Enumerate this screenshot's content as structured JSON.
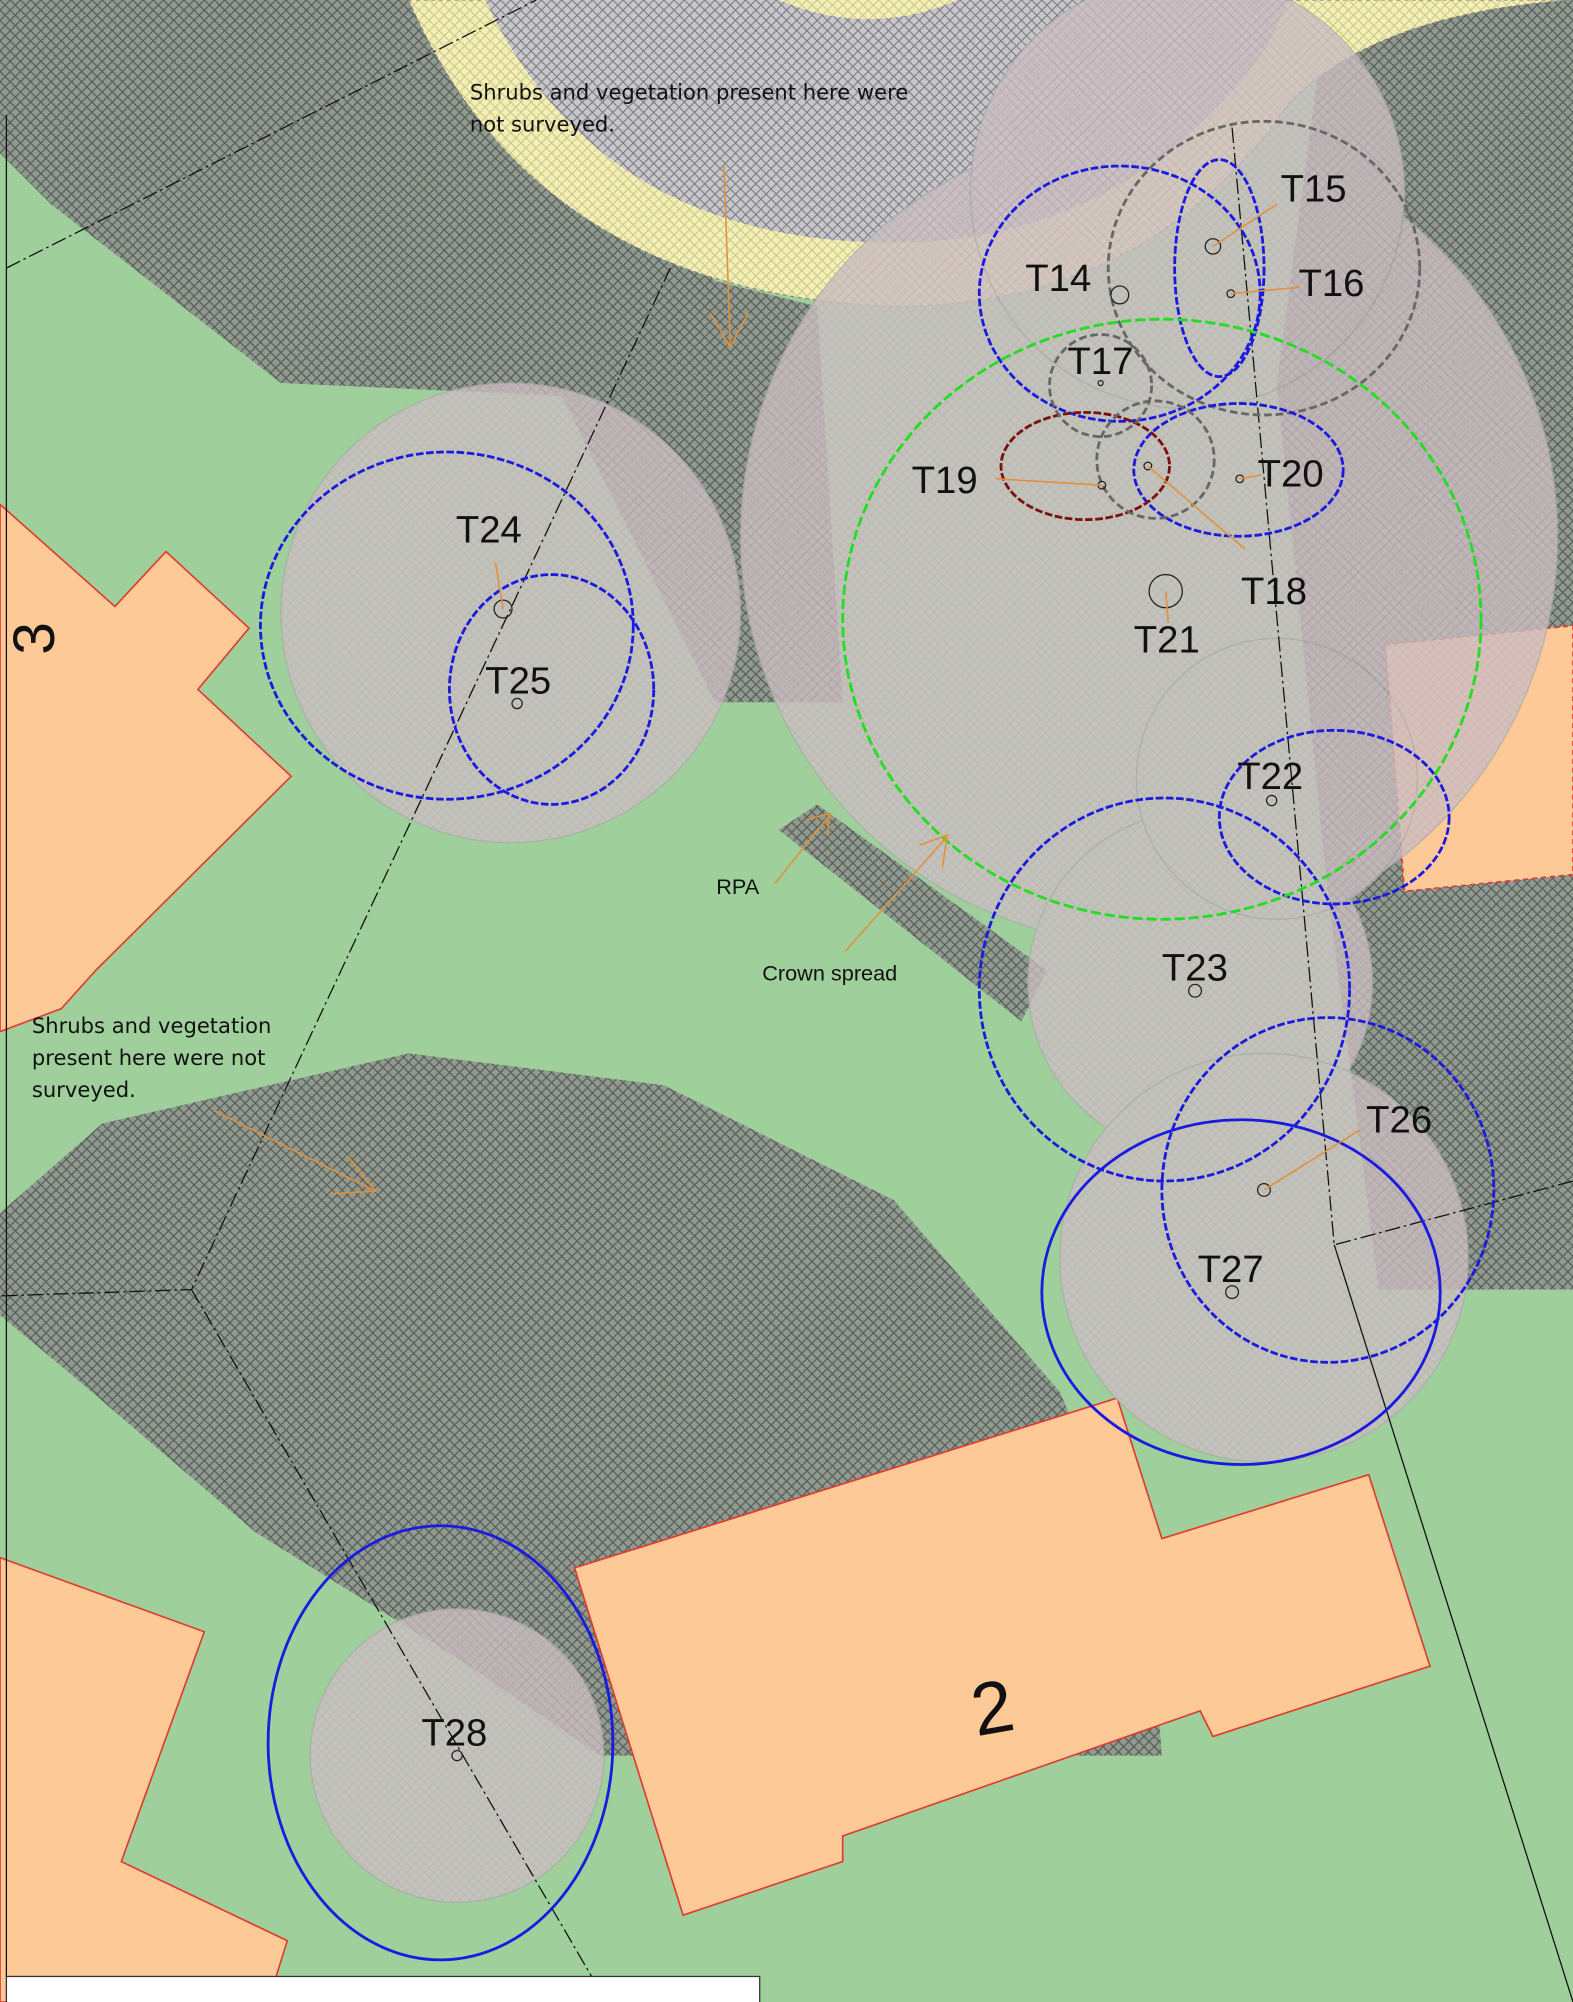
{
  "map": {
    "trees": [
      "T14",
      "T15",
      "T16",
      "T17",
      "T18",
      "T19",
      "T20",
      "T21",
      "T22",
      "T23",
      "T24",
      "T25",
      "T26",
      "T27",
      "T28"
    ],
    "plot_numbers": [
      "3",
      "2"
    ],
    "notes": [
      "Shrubs and vegetation present here were not surveyed.",
      "Shrubs and vegetation present here were not surveyed."
    ],
    "callouts": [
      "RPA",
      "Crown spread"
    ]
  }
}
